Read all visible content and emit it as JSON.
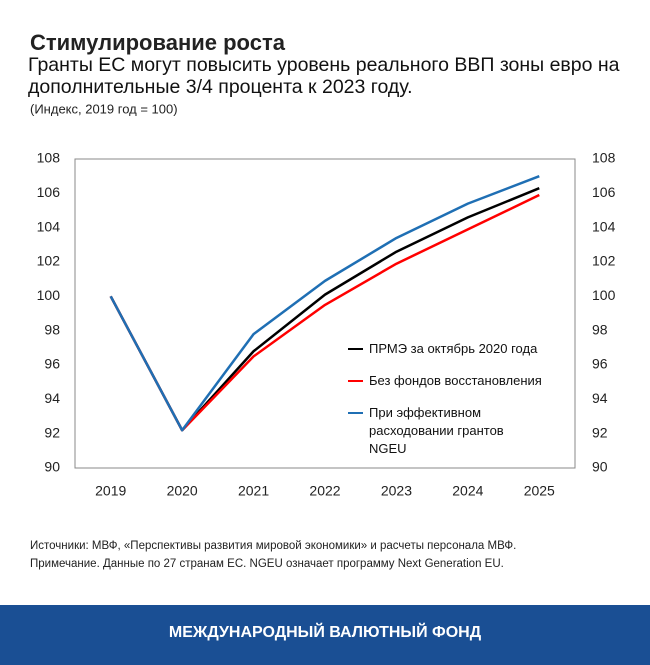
{
  "chart_data": {
    "type": "line",
    "title": "Стимулирование роста",
    "subtitle": "Гранты ЕС могут повысить уровень реального ВВП зоны евро на дополнительные 3/4 процента к 2023 году.",
    "note": "(Индекс, 2019 год = 100)",
    "categories": [
      "2019",
      "2020",
      "2021",
      "2022",
      "2023",
      "2024",
      "2025"
    ],
    "series": [
      {
        "name": "ПРМЭ за октябрь 2020 года",
        "color": "#000000",
        "values": [
          100,
          92.2,
          96.8,
          100.1,
          102.6,
          104.6,
          106.3
        ]
      },
      {
        "name": "Без фондов восстановления",
        "color": "#ff0000",
        "values": [
          100,
          92.2,
          96.5,
          99.5,
          101.9,
          103.9,
          105.9
        ]
      },
      {
        "name": "При эффективном расходовании грантов NGEU",
        "color": "#1f6fb4",
        "values": [
          100,
          92.2,
          97.8,
          100.9,
          103.4,
          105.4,
          107.0
        ]
      }
    ],
    "ylim": [
      90,
      108
    ],
    "yticks": [
      90,
      92,
      94,
      96,
      98,
      100,
      102,
      104,
      106,
      108
    ],
    "y2lim": [
      90,
      108
    ],
    "y2ticks": [
      90,
      92,
      94,
      96,
      98,
      100,
      102,
      104,
      106,
      108
    ],
    "grid": false
  },
  "sources": "Источники: МВФ, «Перспективы развития мировой экономики» и расчеты персонала МВФ.",
  "remark": "Примечание. Данные по 27 странам ЕС. NGEU означает программу Next Generation EU.",
  "footer": "МЕЖДУНАРОДНЫЙ ВАЛЮТНЫЙ ФОНД"
}
